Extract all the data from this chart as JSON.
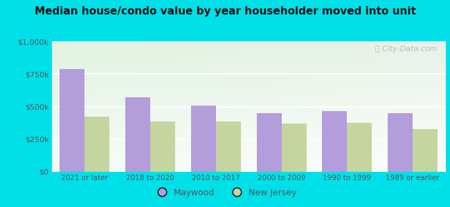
{
  "title": "Median house/condo value by year householder moved into unit",
  "categories": [
    "2021 or later",
    "2018 to 2020",
    "2010 to 2017",
    "2000 to 2009",
    "1990 to 1999",
    "1989 or earlier"
  ],
  "maywood_values": [
    790000,
    570000,
    510000,
    450000,
    465000,
    450000
  ],
  "nj_values": [
    425000,
    385000,
    385000,
    370000,
    375000,
    330000
  ],
  "maywood_color": "#b39ddb",
  "nj_color": "#c5d5a0",
  "background_outer": "#00e0e8",
  "ylim": [
    0,
    1000000
  ],
  "yticks": [
    0,
    250000,
    500000,
    750000,
    1000000
  ],
  "ytick_labels": [
    "$0",
    "$250k",
    "$500k",
    "$750k",
    "$1,000k"
  ],
  "legend_maywood": "Maywood",
  "legend_nj": "New Jersey",
  "watermark": "City-Data.com",
  "bar_width": 0.38
}
